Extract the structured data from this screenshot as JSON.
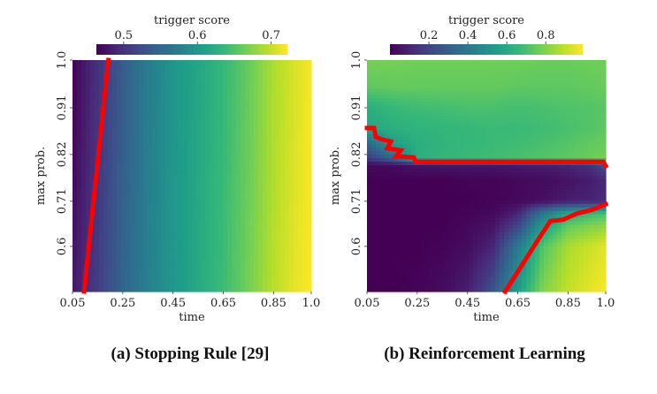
{
  "chart_data": [
    {
      "type": "heatmap",
      "caption": "(a) Stopping Rule [29]",
      "xlabel": "time",
      "ylabel": "max prob.",
      "xticks": [
        0.05,
        0.25,
        0.45,
        0.65,
        0.85,
        1.0
      ],
      "xtick_labels": [
        "0.05",
        "0.25",
        "0.45",
        "0.65",
        "0.85",
        "1.0"
      ],
      "yticks": [
        1.0,
        0.91,
        0.82,
        0.71,
        0.6
      ],
      "ytick_labels": [
        "1.0",
        "0.91",
        "0.82",
        "0.71",
        "0.6"
      ],
      "xlim": [
        0.05,
        1.0
      ],
      "ylim": [
        0.5,
        1.0
      ],
      "colormap": "viridis",
      "colorbar": {
        "label": "trigger score",
        "range": [
          0.463,
          0.722
        ],
        "ticks": [
          0.5,
          0.6,
          0.7
        ],
        "tick_labels": [
          "0.5",
          "0.6",
          "0.7"
        ],
        "placement": "top"
      },
      "grid_x": [
        0.05,
        0.15,
        0.25,
        0.35,
        0.45,
        0.55,
        0.65,
        0.75,
        0.85,
        0.95,
        1.0
      ],
      "grid_y": [
        1.0,
        0.75,
        0.5
      ],
      "values": [
        [
          0.463,
          0.5,
          0.538,
          0.572,
          0.598,
          0.615,
          0.635,
          0.66,
          0.69,
          0.71,
          0.72
        ],
        [
          0.47,
          0.505,
          0.542,
          0.574,
          0.6,
          0.618,
          0.638,
          0.663,
          0.692,
          0.712,
          0.721
        ],
        [
          0.48,
          0.51,
          0.546,
          0.576,
          0.6,
          0.62,
          0.64,
          0.666,
          0.695,
          0.715,
          0.722
        ]
      ],
      "boundary": {
        "color": "#ff0000",
        "points": [
          [
            0.096,
            0.5
          ],
          [
            0.193,
            1.0
          ]
        ]
      }
    },
    {
      "type": "heatmap",
      "caption": "(b) Reinforcement Learning",
      "xlabel": "time",
      "ylabel": "max prob.",
      "xticks": [
        0.05,
        0.25,
        0.45,
        0.65,
        0.85,
        1.0
      ],
      "xtick_labels": [
        "0.05",
        "0.25",
        "0.45",
        "0.65",
        "0.85",
        "1.0"
      ],
      "yticks": [
        1.0,
        0.91,
        0.82,
        0.71,
        0.6
      ],
      "ytick_labels": [
        "1.0",
        "0.91",
        "0.82",
        "0.71",
        "0.6"
      ],
      "xlim": [
        0.05,
        1.0
      ],
      "ylim": [
        0.5,
        1.0
      ],
      "colormap": "viridis",
      "colorbar": {
        "label": "trigger score",
        "range": [
          0.0,
          0.99
        ],
        "ticks": [
          0.2,
          0.4,
          0.6,
          0.8
        ],
        "tick_labels": [
          "0.2",
          "0.4",
          "0.6",
          "0.8"
        ],
        "placement": "top"
      },
      "grid_x": [
        0.05,
        0.15,
        0.25,
        0.35,
        0.45,
        0.55,
        0.65,
        0.75,
        0.85,
        0.95,
        1.0
      ],
      "grid_y": [
        1.0,
        0.95,
        0.91,
        0.87,
        0.84,
        0.81,
        0.795,
        0.76,
        0.71,
        0.68,
        0.65,
        0.6,
        0.5
      ],
      "values": [
        [
          0.78,
          0.78,
          0.77,
          0.77,
          0.77,
          0.77,
          0.77,
          0.76,
          0.76,
          0.77,
          0.77
        ],
        [
          0.74,
          0.75,
          0.75,
          0.75,
          0.75,
          0.75,
          0.74,
          0.74,
          0.74,
          0.75,
          0.76
        ],
        [
          0.62,
          0.66,
          0.68,
          0.69,
          0.7,
          0.7,
          0.69,
          0.7,
          0.71,
          0.72,
          0.73
        ],
        [
          0.58,
          0.62,
          0.64,
          0.65,
          0.66,
          0.67,
          0.67,
          0.68,
          0.7,
          0.72,
          0.74
        ],
        [
          0.3,
          0.55,
          0.62,
          0.64,
          0.66,
          0.67,
          0.68,
          0.7,
          0.72,
          0.75,
          0.76
        ],
        [
          0.15,
          0.3,
          0.62,
          0.65,
          0.67,
          0.68,
          0.7,
          0.72,
          0.74,
          0.77,
          0.78
        ],
        [
          0.02,
          0.03,
          0.05,
          0.06,
          0.06,
          0.06,
          0.07,
          0.08,
          0.1,
          0.15,
          0.25
        ],
        [
          0.0,
          0.0,
          0.0,
          0.0,
          0.01,
          0.01,
          0.02,
          0.03,
          0.05,
          0.08,
          0.12
        ],
        [
          0.0,
          0.0,
          0.0,
          0.0,
          0.0,
          0.01,
          0.02,
          0.04,
          0.08,
          0.1,
          0.12
        ],
        [
          0.0,
          0.0,
          0.0,
          0.0,
          0.01,
          0.02,
          0.1,
          0.4,
          0.6,
          0.68,
          0.7
        ],
        [
          0.0,
          0.0,
          0.0,
          0.0,
          0.02,
          0.05,
          0.2,
          0.55,
          0.75,
          0.8,
          0.82
        ],
        [
          0.0,
          0.0,
          0.0,
          0.01,
          0.03,
          0.1,
          0.4,
          0.72,
          0.86,
          0.92,
          0.95
        ],
        [
          0.0,
          0.0,
          0.01,
          0.03,
          0.08,
          0.25,
          0.55,
          0.8,
          0.9,
          0.96,
          0.98
        ]
      ],
      "boundary": {
        "color": "#ff0000",
        "segments": [
          [
            [
              0.05,
              0.871
            ],
            [
              0.078,
              0.871
            ],
            [
              0.085,
              0.854
            ],
            [
              0.11,
              0.849
            ],
            [
              0.145,
              0.845
            ],
            [
              0.131,
              0.832
            ],
            [
              0.184,
              0.828
            ],
            [
              0.166,
              0.816
            ],
            [
              0.237,
              0.813
            ],
            [
              0.244,
              0.803
            ],
            [
              0.99,
              0.803
            ],
            [
              1.0,
              0.793
            ]
          ],
          [
            [
              0.6,
              0.5
            ],
            [
              0.74,
              0.625
            ],
            [
              0.78,
              0.662
            ],
            [
              0.83,
              0.665
            ],
            [
              0.885,
              0.68
            ],
            [
              0.95,
              0.69
            ],
            [
              1.0,
              0.703
            ]
          ]
        ]
      }
    }
  ]
}
